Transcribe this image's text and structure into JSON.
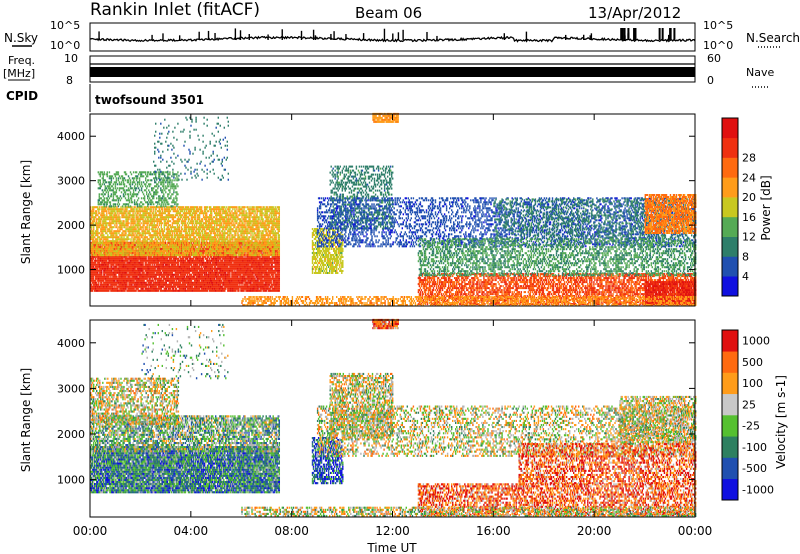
{
  "header": {
    "station": "Rankin Inlet (fitACF)",
    "beam": "Beam 06",
    "date": "13/Apr/2012"
  },
  "strips": {
    "nsky_label": "N.Sky",
    "nsearch_label": "N.Search",
    "scale_top": "10^5",
    "scale_bottom": "10^0",
    "freq_label_line1": "Freq.",
    "freq_label_line2": "[MHz]",
    "freq_tick_top": "10",
    "freq_tick_bottom": "8",
    "nave_label": "Nave",
    "nave_tick_top": "60",
    "nave_tick_bottom": "0",
    "cpid_label": "CPID",
    "cpid_value": "twofsound 3501"
  },
  "colors": {
    "power": [
      "#1010e0",
      "#2050b0",
      "#2e7e6a",
      "#55aa55",
      "#c8c820",
      "#ff9c1a",
      "#ff6a10",
      "#f03010",
      "#e01010"
    ],
    "velocity": [
      "#e01010",
      "#ff6a10",
      "#ff9c1a",
      "#c8c8c8",
      "#55c030",
      "#2e8060",
      "#2050b0",
      "#1010e0"
    ],
    "ground_scatter": "#b4b4b4"
  },
  "chart_data": [
    {
      "type": "heatmap",
      "name": "power",
      "ylabel": "Slant Range [km]",
      "xlim": [
        0,
        24
      ],
      "ylim": [
        180,
        4500
      ],
      "yticks": [
        "1000",
        "2000",
        "3000",
        "4000"
      ],
      "colorbar": {
        "label": "Power [dB]",
        "range": [
          0,
          32
        ],
        "ticks": [
          "4",
          "8",
          "12",
          "16",
          "20",
          "24",
          "28"
        ]
      },
      "regions": [
        {
          "t": [
            0.0,
            7.5
          ],
          "r": [
            500,
            1600
          ],
          "v": 27,
          "d": 0.92
        },
        {
          "t": [
            0.0,
            7.5
          ],
          "r": [
            1300,
            2400
          ],
          "v": 18,
          "d": 0.75
        },
        {
          "t": [
            0.3,
            3.5
          ],
          "r": [
            2400,
            3200
          ],
          "v": 12,
          "d": 0.45
        },
        {
          "t": [
            2.5,
            5.5
          ],
          "r": [
            3000,
            4400
          ],
          "v": 8,
          "d": 0.08
        },
        {
          "t": [
            8.8,
            10.0
          ],
          "r": [
            900,
            1900
          ],
          "v": 16,
          "d": 0.65
        },
        {
          "t": [
            9.5,
            12.0
          ],
          "r": [
            1900,
            3300
          ],
          "v": 9,
          "d": 0.4
        },
        {
          "t": [
            11.2,
            12.2
          ],
          "r": [
            4300,
            4500
          ],
          "v": 20,
          "d": 0.9
        },
        {
          "t": [
            9.0,
            24.0
          ],
          "r": [
            1500,
            2600
          ],
          "v": 5,
          "d": 0.35
        },
        {
          "t": [
            13.0,
            24.0
          ],
          "r": [
            200,
            900
          ],
          "v": 25,
          "d": 0.65
        },
        {
          "t": [
            13.0,
            24.0
          ],
          "r": [
            850,
            1700
          ],
          "v": 11,
          "d": 0.45
        },
        {
          "t": [
            16.0,
            24.0
          ],
          "r": [
            1700,
            2600
          ],
          "v": 9,
          "d": 0.3
        },
        {
          "t": [
            22.0,
            24.0
          ],
          "r": [
            1800,
            2700
          ],
          "v": 22,
          "d": 0.75
        },
        {
          "t": [
            22.0,
            24.0
          ],
          "r": [
            200,
            700
          ],
          "v": 28,
          "d": 0.85
        },
        {
          "t": [
            6.0,
            24.0
          ],
          "r": [
            180,
            400
          ],
          "v": 20,
          "d": 0.5
        }
      ]
    },
    {
      "type": "heatmap",
      "name": "velocity",
      "xlabel": "Time UT",
      "ylabel": "Slant Range [km]",
      "xlim": [
        0,
        24
      ],
      "ylim": [
        180,
        4500
      ],
      "yticks": [
        "1000",
        "2000",
        "3000",
        "4000"
      ],
      "xticks": [
        "00:00",
        "04:00",
        "08:00",
        "12:00",
        "16:00",
        "20:00",
        "00:00"
      ],
      "colorbar": {
        "label": "Velocity [m s-1]",
        "ticks": [
          "1000",
          "500",
          "100",
          "25",
          "-25",
          "-100",
          "-500",
          "-1000"
        ]
      },
      "regions": [
        {
          "t": [
            0.0,
            7.5
          ],
          "r": [
            700,
            1700
          ],
          "v": 5,
          "d": 0.92
        },
        {
          "t": [
            0.0,
            7.5
          ],
          "r": [
            1600,
            2400
          ],
          "v": 4,
          "d": 0.65
        },
        {
          "t": [
            0.0,
            3.5
          ],
          "r": [
            2200,
            3200
          ],
          "v": 3,
          "d": 0.5
        },
        {
          "t": [
            2.0,
            5.5
          ],
          "r": [
            3200,
            4400
          ],
          "v": 4,
          "d": 0.08
        },
        {
          "t": [
            8.8,
            10.0
          ],
          "r": [
            900,
            1900
          ],
          "v": 6,
          "d": 0.6
        },
        {
          "t": [
            9.5,
            12.0
          ],
          "r": [
            1900,
            3300
          ],
          "v": 3,
          "d": 0.55
        },
        {
          "t": [
            11.2,
            12.2
          ],
          "r": [
            4300,
            4500
          ],
          "v": 1,
          "d": 0.9
        },
        {
          "t": [
            9.0,
            24.0
          ],
          "r": [
            1500,
            2600
          ],
          "v": 3,
          "d": 0.35
        },
        {
          "t": [
            13.0,
            24.0
          ],
          "r": [
            200,
            900
          ],
          "v": 1,
          "d": 0.55
        },
        {
          "t": [
            17.0,
            24.0
          ],
          "r": [
            900,
            1800
          ],
          "v": 1,
          "d": 0.5
        },
        {
          "t": [
            21.0,
            24.0
          ],
          "r": [
            1800,
            2800
          ],
          "v": 3,
          "d": 0.55
        },
        {
          "t": [
            6.0,
            24.0
          ],
          "r": [
            180,
            400
          ],
          "v": 3,
          "d": 0.5
        }
      ]
    }
  ]
}
